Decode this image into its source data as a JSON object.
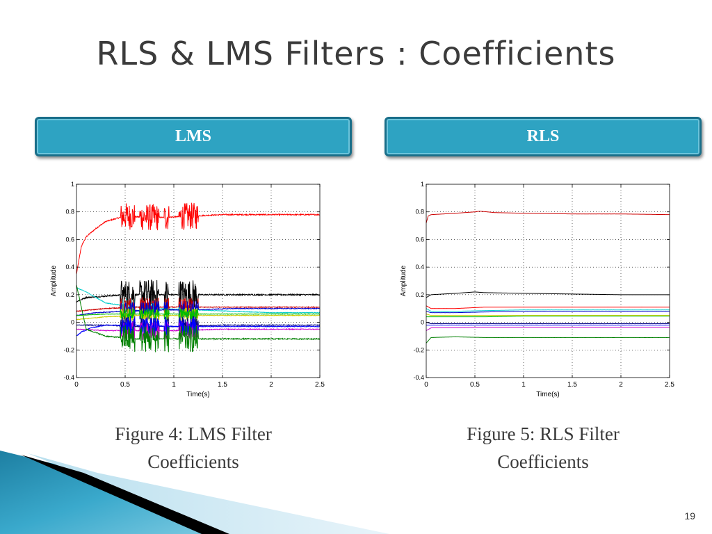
{
  "slide": {
    "title": "RLS & LMS Filters : Coefficients",
    "page_number": "19",
    "colors": {
      "header_fill": "#2ea3c2",
      "header_border": "#1a6f8a",
      "decor_blue": "#2a8fb0"
    }
  },
  "headers": {
    "left": "LMS",
    "right": "RLS"
  },
  "captions": {
    "left": {
      "line1": "Figure 4: LMS Filter",
      "line2": "Coefficients"
    },
    "right": {
      "line1": "Figure 5: RLS Filter",
      "line2": "Coefficients"
    }
  },
  "chart_data": [
    {
      "type": "line",
      "xlabel": "Time(s)",
      "ylabel": "Amplitude",
      "xlim": [
        0,
        2.5
      ],
      "ylim": [
        -0.4,
        1
      ],
      "xticks": [
        0,
        0.5,
        1,
        1.5,
        2,
        2.5
      ],
      "xtick_labels": [
        "0",
        "0.5",
        "1",
        "1.5",
        "2",
        "2.5"
      ],
      "yticks": [
        -0.4,
        -0.2,
        0,
        0.2,
        0.4,
        0.6,
        0.8,
        1
      ],
      "ytick_labels": [
        "-0.4",
        "-0.2",
        "0",
        "0.2",
        "0.4",
        "0.6",
        "0.8",
        "1"
      ],
      "grid": true,
      "noise_intervals": [
        [
          0.45,
          0.6
        ],
        [
          0.65,
          0.85
        ],
        [
          0.9,
          0.95
        ],
        [
          1.05,
          1.25
        ]
      ],
      "series": [
        {
          "color": "#ff0000",
          "x": [
            0,
            0.05,
            0.1,
            0.2,
            0.3,
            0.4,
            0.5,
            0.7,
            0.9,
            1.2,
            1.5,
            2.0,
            2.5
          ],
          "y": [
            0.35,
            0.55,
            0.62,
            0.68,
            0.73,
            0.75,
            0.77,
            0.76,
            0.76,
            0.77,
            0.78,
            0.78,
            0.78
          ],
          "noise": 0.07
        },
        {
          "color": "#000000",
          "x": [
            0,
            0.1,
            0.3,
            0.5,
            0.8,
            1.2,
            1.6,
            2.0,
            2.5
          ],
          "y": [
            0.15,
            0.18,
            0.19,
            0.2,
            0.2,
            0.2,
            0.2,
            0.2,
            0.2
          ],
          "noise": 0.08
        },
        {
          "color": "#00cccc",
          "x": [
            0,
            0.1,
            0.2,
            0.3,
            0.5,
            0.8,
            1.2,
            1.6,
            2.0,
            2.5
          ],
          "y": [
            0.25,
            0.22,
            0.18,
            0.14,
            0.12,
            0.1,
            0.09,
            0.08,
            0.07,
            0.07
          ],
          "noise": 0.04
        },
        {
          "color": "#cc0000",
          "x": [
            0,
            0.3,
            0.6,
            1.0,
            1.5,
            2.0,
            2.5
          ],
          "y": [
            0.08,
            0.1,
            0.11,
            0.11,
            0.11,
            0.11,
            0.11
          ],
          "noise": 0.05
        },
        {
          "color": "#0000cc",
          "x": [
            0,
            0.2,
            0.5,
            0.8,
            1.2,
            1.6,
            2.0,
            2.5
          ],
          "y": [
            0.05,
            0.07,
            0.08,
            0.09,
            0.09,
            0.1,
            0.1,
            0.1
          ],
          "noise": 0.05
        },
        {
          "color": "#cccc00",
          "x": [
            0,
            0.3,
            0.6,
            1.0,
            1.5,
            2.0,
            2.5
          ],
          "y": [
            0.02,
            0.04,
            0.05,
            0.05,
            0.05,
            0.05,
            0.05
          ],
          "noise": 0.04
        },
        {
          "color": "#00bb00",
          "x": [
            0,
            0.3,
            0.6,
            1.0,
            1.5,
            2.0,
            2.5
          ],
          "y": [
            0.05,
            0.06,
            0.06,
            0.06,
            0.06,
            0.06,
            0.06
          ],
          "noise": 0.03
        },
        {
          "color": "#000080",
          "x": [
            0,
            0.3,
            0.6,
            1.0,
            1.5,
            2.0,
            2.5
          ],
          "y": [
            -0.02,
            -0.02,
            -0.03,
            -0.03,
            -0.02,
            -0.02,
            -0.02
          ],
          "noise": 0.05
        },
        {
          "color": "#cc00cc",
          "x": [
            0,
            0.3,
            0.6,
            1.0,
            1.5,
            2.0,
            2.5
          ],
          "y": [
            -0.05,
            -0.06,
            -0.06,
            -0.06,
            -0.05,
            -0.05,
            -0.05
          ],
          "noise": 0.05
        },
        {
          "color": "#0000ff",
          "x": [
            0,
            0.05,
            0.15,
            0.3,
            0.6,
            1.0,
            1.5,
            2.0,
            2.5
          ],
          "y": [
            -0.1,
            -0.07,
            -0.04,
            -0.02,
            -0.02,
            -0.03,
            -0.03,
            -0.03,
            -0.03
          ],
          "noise": 0.05
        },
        {
          "color": "#008000",
          "x": [
            0,
            0.1,
            0.3,
            0.6,
            1.0,
            1.5,
            2.0,
            2.5
          ],
          "y": [
            0.27,
            -0.05,
            -0.1,
            -0.12,
            -0.12,
            -0.12,
            -0.12,
            -0.12
          ],
          "noise": 0.07
        }
      ]
    },
    {
      "type": "line",
      "xlabel": "Time(s)",
      "ylabel": "Amplitude",
      "xlim": [
        0,
        2.5
      ],
      "ylim": [
        -0.4,
        1
      ],
      "xticks": [
        0,
        0.5,
        1,
        1.5,
        2,
        2.5
      ],
      "xtick_labels": [
        "0",
        "0.5",
        "1",
        "1.5",
        "2",
        "2.5"
      ],
      "yticks": [
        -0.4,
        -0.2,
        0,
        0.2,
        0.4,
        0.6,
        0.8,
        1
      ],
      "ytick_labels": [
        "-0.4",
        "-0.2",
        "0",
        "0.2",
        "0.4",
        "0.6",
        "0.8",
        "1"
      ],
      "grid": true,
      "noise_intervals": [],
      "series": [
        {
          "color": "#cc0000",
          "x": [
            0,
            0.02,
            0.05,
            0.3,
            0.5,
            0.55,
            0.7,
            1.0,
            1.5,
            2.0,
            2.5
          ],
          "y": [
            0.72,
            0.77,
            0.78,
            0.79,
            0.8,
            0.805,
            0.795,
            0.79,
            0.785,
            0.785,
            0.78
          ],
          "noise": 0.003
        },
        {
          "color": "#000000",
          "x": [
            0,
            0.05,
            0.3,
            0.5,
            0.6,
            1.0,
            1.5,
            2.0,
            2.5
          ],
          "y": [
            0.18,
            0.2,
            0.21,
            0.22,
            0.215,
            0.21,
            0.205,
            0.2,
            0.2
          ],
          "noise": 0.003
        },
        {
          "color": "#ff0000",
          "x": [
            0,
            0.05,
            0.3,
            0.6,
            1.0,
            1.5,
            2.0,
            2.5
          ],
          "y": [
            0.12,
            0.1,
            0.1,
            0.11,
            0.11,
            0.11,
            0.11,
            0.11
          ],
          "noise": 0.003
        },
        {
          "color": "#00cccc",
          "x": [
            0,
            0.05,
            0.3,
            0.6,
            1.0,
            1.5,
            2.0,
            2.5
          ],
          "y": [
            0.1,
            0.08,
            0.08,
            0.085,
            0.09,
            0.09,
            0.09,
            0.09
          ],
          "noise": 0.003
        },
        {
          "color": "#0000cc",
          "x": [
            0,
            0.05,
            0.3,
            0.6,
            1.0,
            1.5,
            2.0,
            2.5
          ],
          "y": [
            0.08,
            0.07,
            0.07,
            0.075,
            0.08,
            0.08,
            0.08,
            0.08
          ],
          "noise": 0.003
        },
        {
          "color": "#cccc00",
          "x": [
            0,
            0.05,
            0.3,
            0.6,
            1.0,
            1.5,
            2.0,
            2.5
          ],
          "y": [
            0.06,
            0.05,
            0.05,
            0.05,
            0.05,
            0.05,
            0.05,
            0.05
          ],
          "noise": 0.003
        },
        {
          "color": "#00bb00",
          "x": [
            0,
            0.05,
            0.3,
            0.6,
            1.0,
            1.5,
            2.0,
            2.5
          ],
          "y": [
            0.04,
            0.04,
            0.04,
            0.04,
            0.045,
            0.045,
            0.045,
            0.045
          ],
          "noise": 0.003
        },
        {
          "color": "#000080",
          "x": [
            0,
            0.05,
            0.3,
            0.6,
            1.0,
            1.5,
            2.0,
            2.5
          ],
          "y": [
            0.0,
            -0.01,
            -0.01,
            -0.01,
            -0.01,
            -0.01,
            -0.01,
            -0.01
          ],
          "noise": 0.003
        },
        {
          "color": "#cc00cc",
          "x": [
            0,
            0.05,
            0.3,
            0.6,
            1.0,
            1.5,
            2.0,
            2.5
          ],
          "y": [
            -0.06,
            -0.04,
            -0.04,
            -0.035,
            -0.035,
            -0.035,
            -0.035,
            -0.035
          ],
          "noise": 0.003
        },
        {
          "color": "#0000ff",
          "x": [
            0,
            0.05,
            0.3,
            0.6,
            1.0,
            1.5,
            2.0,
            2.5
          ],
          "y": [
            -0.02,
            -0.02,
            -0.02,
            -0.02,
            -0.02,
            -0.02,
            -0.02,
            -0.02
          ],
          "noise": 0.003
        },
        {
          "color": "#008000",
          "x": [
            0,
            0.05,
            0.3,
            0.6,
            1.0,
            1.5,
            2.0,
            2.5
          ],
          "y": [
            -0.15,
            -0.11,
            -0.105,
            -0.11,
            -0.11,
            -0.11,
            -0.11,
            -0.11
          ],
          "noise": 0.003
        }
      ]
    }
  ]
}
